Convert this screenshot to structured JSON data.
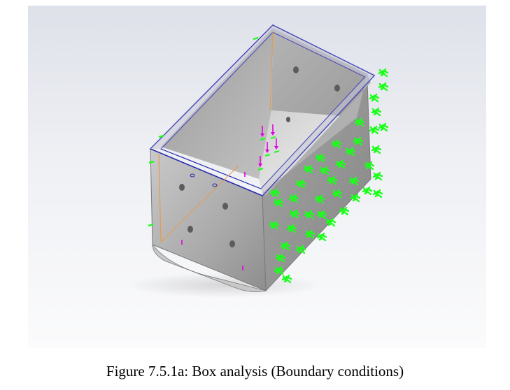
{
  "figure": {
    "caption": "Figure 7.5.1a: Box analysis (Boundary conditions)",
    "model": {
      "part": "open-top-box",
      "view": "isometric",
      "fixture_symbol_color": "#1aff1a",
      "load_arrow_color": "#e000e0",
      "edge_highlight_color": "#2b2bb0",
      "split_line_color": "#e89a4a",
      "body_color": "#9a9a9a"
    }
  }
}
